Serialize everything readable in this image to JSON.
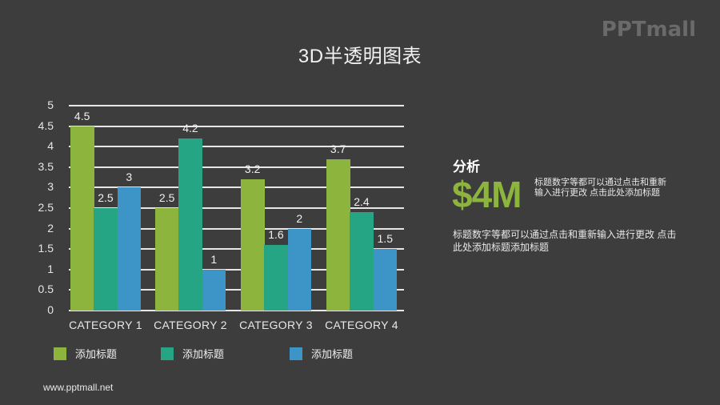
{
  "header": {
    "title": "3D半透明图表",
    "logo": "PPTmall"
  },
  "chart_data": {
    "type": "bar",
    "title": "3D半透明图表",
    "categories": [
      "CATEGORY 1",
      "CATEGORY 2",
      "CATEGORY 3",
      "CATEGORY 4"
    ],
    "series": [
      {
        "name": "添加标题",
        "color": "#8db43d",
        "values": [
          4.5,
          2.5,
          3.2,
          3.7
        ]
      },
      {
        "name": "添加标题",
        "color": "#25a583",
        "values": [
          2.5,
          4.2,
          1.6,
          2.4
        ]
      },
      {
        "name": "添加标题",
        "color": "#3d94c7",
        "values": [
          3,
          1,
          2,
          1.5
        ]
      }
    ],
    "yticks": [
      "0",
      "0.5",
      "1",
      "1.5",
      "2",
      "2.5",
      "3",
      "3.5",
      "4",
      "4.5",
      "5"
    ],
    "ylim": [
      0,
      5
    ],
    "xlabel": "",
    "ylabel": "",
    "grid": true,
    "legend_position": "bottom",
    "data_labels": true
  },
  "legend": [
    {
      "label": "添加标题",
      "color": "#8db43d"
    },
    {
      "label": "添加标题",
      "color": "#25a583"
    },
    {
      "label": "添加标题",
      "color": "#3d94c7"
    }
  ],
  "analysis": {
    "title": "分析",
    "value": "$4M",
    "side_text": "标题数字等都可以通过点击和重新输入进行更改 点击此处添加标题",
    "paragraph": "标题数字等都可以通过点击和重新输入进行更改 点击此处添加标题添加标题"
  },
  "footer": {
    "url": "www.pptmall.net"
  }
}
